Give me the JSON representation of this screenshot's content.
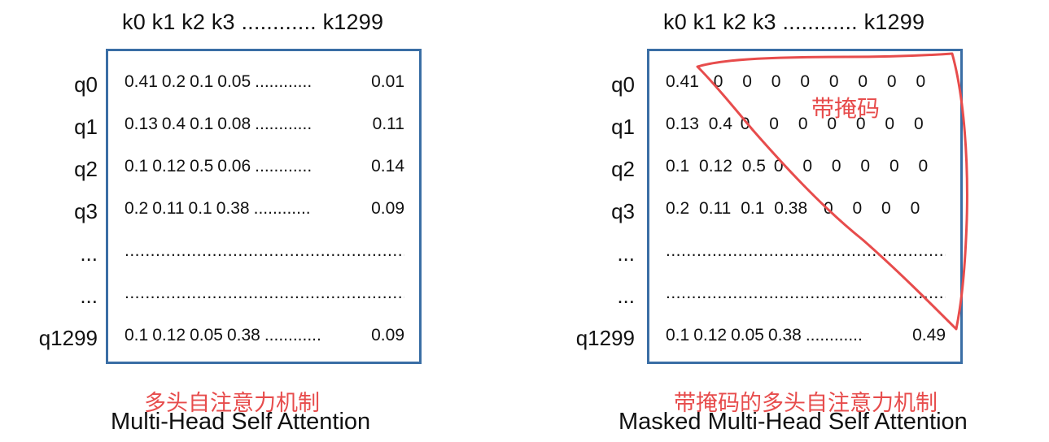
{
  "left": {
    "keys_header": "k0 k1 k2 k3 ............ k1299",
    "row_labels": [
      "q0",
      "q1",
      "q2",
      "q3",
      "...",
      "...",
      "q1299"
    ],
    "rows": [
      {
        "cells": [
          "0.41",
          "0.2",
          "0.1",
          "0.05"
        ],
        "filler": "............",
        "last": "0.01"
      },
      {
        "cells": [
          "0.13",
          "0.4",
          "0.1",
          "0.08"
        ],
        "filler": "............",
        "last": "0.11"
      },
      {
        "cells": [
          "0.1",
          "0.12",
          "0.5",
          "0.06"
        ],
        "filler": "............",
        "last": "0.14"
      },
      {
        "cells": [
          "0.2",
          "0.11",
          "0.1",
          "0.38"
        ],
        "filler": "............",
        "last": "0.09"
      },
      {
        "dots": "........................................................................................"
      },
      {
        "dots": "........................................................................................"
      },
      {
        "cells": [
          "0.1",
          "0.12",
          "0.05",
          "0.38"
        ],
        "filler": "............",
        "last": "0.09"
      }
    ],
    "caption_cn": "多头自注意力机制",
    "caption_en": "Multi-Head Self Attention"
  },
  "right": {
    "keys_header": "k0 k1 k2 k3 ............ k1299",
    "row_labels": [
      "q0",
      "q1",
      "q2",
      "q3",
      "...",
      "...",
      "q1299"
    ],
    "rows": [
      {
        "cells": [
          "0.41",
          "0",
          "0",
          "0",
          "0",
          "0",
          "0",
          "0",
          "0"
        ]
      },
      {
        "cells": [
          "0.13",
          "0.4",
          "0",
          "0",
          "0",
          "0",
          "0",
          "0",
          "0"
        ]
      },
      {
        "cells": [
          "0.1",
          "0.12",
          "0.5",
          "0",
          "0",
          "0",
          "0",
          "0",
          "0"
        ]
      },
      {
        "cells": [
          "0.2",
          "0.11",
          "0.1",
          "0.38",
          "0",
          "0",
          "0",
          "0"
        ]
      },
      {
        "dots": "........................................................................................"
      },
      {
        "dots": "........................................................................................"
      },
      {
        "cells": [
          "0.1",
          "0.12",
          "0.05",
          "0.38"
        ],
        "filler": "............",
        "last": "0.49"
      }
    ],
    "mask_label": "带掩码",
    "caption_cn": "带掩码的多头自注意力机制",
    "caption_en": "Masked Multi-Head Self Attention"
  },
  "colors": {
    "matrix_border": "#3a6ea5",
    "annotation_red": "#e74c4c",
    "text": "#111111"
  }
}
